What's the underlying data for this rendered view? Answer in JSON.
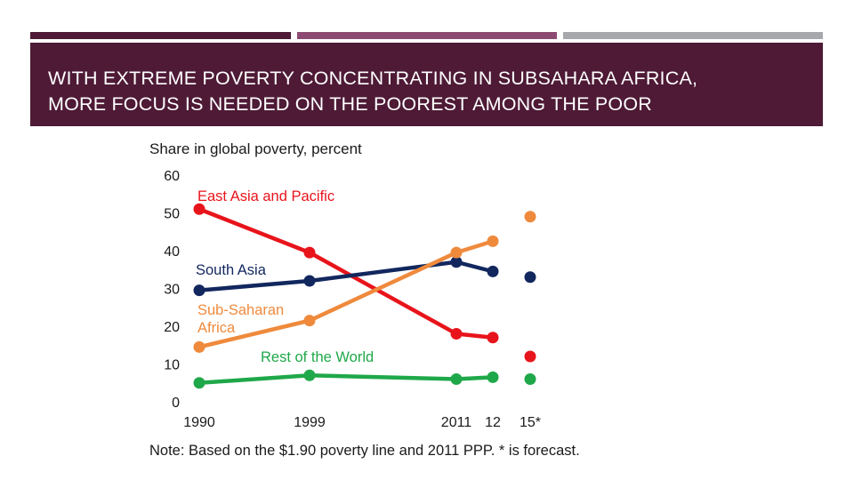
{
  "slide": {
    "title_line1": "WITH EXTREME POVERTY CONCENTRATING IN SUBSAHARA AFRICA,",
    "title_line2": "MORE FOCUS IS NEEDED ON THE POOREST AMONG THE POOR",
    "colors": {
      "banner": "#4e1a36",
      "bar1": "#4e1a36",
      "bar2": "#8c4a72",
      "bar3": "#a6a8ab"
    }
  },
  "chart_data": {
    "type": "line",
    "ylabel": "Share in global poverty, percent",
    "ylim": [
      0,
      60
    ],
    "yticks": [
      "0",
      "10",
      "20",
      "30",
      "40",
      "50",
      "60"
    ],
    "x": [
      1990,
      1999,
      2011,
      2012,
      2015
    ],
    "xticklabels": [
      "1990",
      "1999",
      "2011",
      "12",
      "15*"
    ],
    "forecast_x": [
      2015
    ],
    "grid": false,
    "legend": "inline labels",
    "note": "Note: Based on the $1.90 poverty line and 2011 PPP. * is forecast.",
    "series": [
      {
        "name": "East Asia and Pacific",
        "color": "#e8141b",
        "values": [
          51,
          39.5,
          18,
          17,
          12
        ]
      },
      {
        "name": "South Asia",
        "color": "#12275e",
        "values": [
          29.5,
          32,
          37,
          34.5,
          33
        ]
      },
      {
        "name": "Sub-Saharan Africa",
        "name_lines": [
          "Sub-Saharan",
          "Africa"
        ],
        "color": "#ef8a3c",
        "values": [
          14.5,
          21.5,
          39.5,
          42.5,
          49
        ]
      },
      {
        "name": "Rest of the World",
        "color": "#1fa84a",
        "values": [
          5,
          7,
          6,
          6.5,
          6
        ]
      }
    ]
  }
}
